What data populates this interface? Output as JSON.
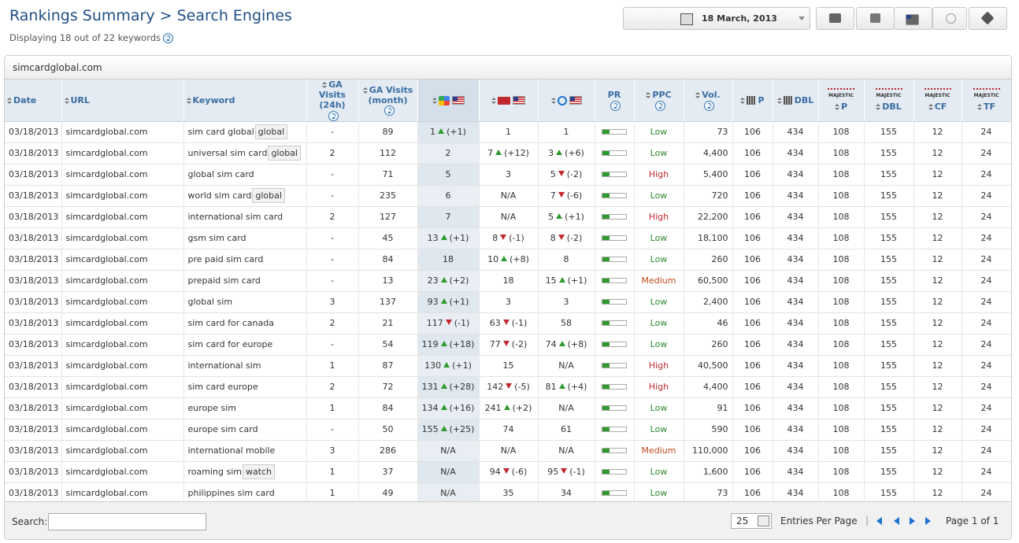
{
  "header": {
    "title": "Rankings Summary > Search Engines",
    "subtitle": "Displaying 18 out of 22 keywords",
    "date": "18 March, 2013"
  },
  "panel": {
    "site": "simcardglobal.com"
  },
  "table": {
    "columns": [
      {
        "label": "Date"
      },
      {
        "label": "URL"
      },
      {
        "label": "Keyword"
      },
      {
        "label": "GA Visits (24h)",
        "help": true
      },
      {
        "label": "GA Visits (month)",
        "help": true
      },
      {
        "engine": "google"
      },
      {
        "engine": "yahoo"
      },
      {
        "engine": "bing"
      },
      {
        "label": "PR",
        "help": true
      },
      {
        "label": "PPC",
        "help": true
      },
      {
        "label": "Vol.",
        "help": true
      },
      {
        "label": "P",
        "icon": true
      },
      {
        "label": "DBL",
        "icon": true
      },
      {
        "label": "P",
        "brand": "MAJESTIC"
      },
      {
        "label": "DBL",
        "brand": "MAJESTIC"
      },
      {
        "label": "CF",
        "brand": "MAJESTIC"
      },
      {
        "label": "TF",
        "brand": "MAJESTIC"
      }
    ],
    "rows": [
      {
        "date": "03/18/2013",
        "url": "simcardglobal.com",
        "keyword": "sim card global",
        "tag": "global",
        "ga24": "-",
        "ga_month": "89",
        "google": {
          "rank": "1",
          "trend": "up",
          "change": "(+1)"
        },
        "yahoo": "1",
        "bing": "1",
        "ppc": "Low",
        "vol": "73",
        "p": "106",
        "dbl": "434",
        "mp": "108",
        "mdbl": "155",
        "cf": "12",
        "tf": "24"
      },
      {
        "date": "03/18/2013",
        "url": "simcardglobal.com",
        "keyword": "universal sim card",
        "tag": "global",
        "ga24": "2",
        "ga_month": "112",
        "google": "2",
        "yahoo": {
          "rank": "7",
          "trend": "up",
          "change": "(+12)"
        },
        "bing": {
          "rank": "3",
          "trend": "up",
          "change": "(+6)"
        },
        "ppc": "Low",
        "vol": "4,400",
        "p": "106",
        "dbl": "434",
        "mp": "108",
        "mdbl": "155",
        "cf": "12",
        "tf": "24"
      },
      {
        "date": "03/18/2013",
        "url": "simcardglobal.com",
        "keyword": "global sim card",
        "ga24": "-",
        "ga_month": "71",
        "google": "5",
        "yahoo": "3",
        "bing": {
          "rank": "5",
          "trend": "down",
          "change": "(-2)"
        },
        "ppc": "High",
        "vol": "5,400",
        "p": "106",
        "dbl": "434",
        "mp": "108",
        "mdbl": "155",
        "cf": "12",
        "tf": "24"
      },
      {
        "date": "03/18/2013",
        "url": "simcardglobal.com",
        "keyword": "world sim card",
        "tag": "global",
        "ga24": "-",
        "ga_month": "235",
        "google": "6",
        "yahoo": "N/A",
        "bing": {
          "rank": "7",
          "trend": "down",
          "change": "(-6)"
        },
        "ppc": "Low",
        "vol": "720",
        "p": "106",
        "dbl": "434",
        "mp": "108",
        "mdbl": "155",
        "cf": "12",
        "tf": "24"
      },
      {
        "date": "03/18/2013",
        "url": "simcardglobal.com",
        "keyword": "international sim card",
        "ga24": "2",
        "ga_month": "127",
        "google": "7",
        "yahoo": "N/A",
        "bing": {
          "rank": "5",
          "trend": "up",
          "change": "(+1)"
        },
        "ppc": "High",
        "vol": "22,200",
        "p": "106",
        "dbl": "434",
        "mp": "108",
        "mdbl": "155",
        "cf": "12",
        "tf": "24"
      },
      {
        "date": "03/18/2013",
        "url": "simcardglobal.com",
        "keyword": "gsm sim card",
        "ga24": "-",
        "ga_month": "45",
        "google": {
          "rank": "13",
          "trend": "up",
          "change": "(+1)"
        },
        "yahoo": {
          "rank": "8",
          "trend": "down",
          "change": "(-1)"
        },
        "bing": {
          "rank": "8",
          "trend": "down",
          "change": "(-2)"
        },
        "ppc": "Low",
        "vol": "18,100",
        "p": "106",
        "dbl": "434",
        "mp": "108",
        "mdbl": "155",
        "cf": "12",
        "tf": "24"
      },
      {
        "date": "03/18/2013",
        "url": "simcardglobal.com",
        "keyword": "pre paid sim card",
        "ga24": "-",
        "ga_month": "84",
        "google": "18",
        "yahoo": {
          "rank": "10",
          "trend": "up",
          "change": "(+8)"
        },
        "bing": "8",
        "ppc": "Low",
        "vol": "260",
        "p": "106",
        "dbl": "434",
        "mp": "108",
        "mdbl": "155",
        "cf": "12",
        "tf": "24"
      },
      {
        "date": "03/18/2013",
        "url": "simcardglobal.com",
        "keyword": "prepaid sim card",
        "ga24": "-",
        "ga_month": "13",
        "google": {
          "rank": "23",
          "trend": "up",
          "change": "(+2)"
        },
        "yahoo": "18",
        "bing": {
          "rank": "15",
          "trend": "up",
          "change": "(+1)"
        },
        "ppc": "Medium",
        "vol": "60,500",
        "p": "106",
        "dbl": "434",
        "mp": "108",
        "mdbl": "155",
        "cf": "12",
        "tf": "24"
      },
      {
        "date": "03/18/2013",
        "url": "simcardglobal.com",
        "keyword": "global sim",
        "ga24": "3",
        "ga_month": "137",
        "google": {
          "rank": "93",
          "trend": "up",
          "change": "(+1)"
        },
        "yahoo": "3",
        "bing": "3",
        "ppc": "Low",
        "vol": "2,400",
        "p": "106",
        "dbl": "434",
        "mp": "108",
        "mdbl": "155",
        "cf": "12",
        "tf": "24"
      },
      {
        "date": "03/18/2013",
        "url": "simcardglobal.com",
        "keyword": "sim card for canada",
        "ga24": "2",
        "ga_month": "21",
        "google": {
          "rank": "117",
          "trend": "down",
          "change": "(-1)"
        },
        "yahoo": {
          "rank": "63",
          "trend": "down",
          "change": "(-1)"
        },
        "bing": "58",
        "ppc": "Low",
        "vol": "46",
        "p": "106",
        "dbl": "434",
        "mp": "108",
        "mdbl": "155",
        "cf": "12",
        "tf": "24"
      },
      {
        "date": "03/18/2013",
        "url": "simcardglobal.com",
        "keyword": "sim card for europe",
        "ga24": "-",
        "ga_month": "54",
        "google": {
          "rank": "119",
          "trend": "up",
          "change": "(+18)"
        },
        "yahoo": {
          "rank": "77",
          "trend": "down",
          "change": "(-2)"
        },
        "bing": {
          "rank": "74",
          "trend": "up",
          "change": "(+8)"
        },
        "ppc": "Low",
        "vol": "260",
        "p": "106",
        "dbl": "434",
        "mp": "108",
        "mdbl": "155",
        "cf": "12",
        "tf": "24"
      },
      {
        "date": "03/18/2013",
        "url": "simcardglobal.com",
        "keyword": "international sim",
        "ga24": "1",
        "ga_month": "87",
        "google": {
          "rank": "130",
          "trend": "up",
          "change": "(+1)"
        },
        "yahoo": "15",
        "bing": "N/A",
        "ppc": "High",
        "vol": "40,500",
        "p": "106",
        "dbl": "434",
        "mp": "108",
        "mdbl": "155",
        "cf": "12",
        "tf": "24"
      },
      {
        "date": "03/18/2013",
        "url": "simcardglobal.com",
        "keyword": "sim card europe",
        "ga24": "2",
        "ga_month": "72",
        "google": {
          "rank": "131",
          "trend": "up",
          "change": "(+28)"
        },
        "yahoo": {
          "rank": "142",
          "trend": "down",
          "change": "(-5)"
        },
        "bing": {
          "rank": "81",
          "trend": "up",
          "change": "(+4)"
        },
        "ppc": "High",
        "vol": "4,400",
        "p": "106",
        "dbl": "434",
        "mp": "108",
        "mdbl": "155",
        "cf": "12",
        "tf": "24"
      },
      {
        "date": "03/18/2013",
        "url": "simcardglobal.com",
        "keyword": "europe sim",
        "ga24": "1",
        "ga_month": "84",
        "google": {
          "rank": "134",
          "trend": "up",
          "change": "(+16)"
        },
        "yahoo": {
          "rank": "241",
          "trend": "up",
          "change": "(+2)"
        },
        "bing": "N/A",
        "ppc": "Low",
        "vol": "91",
        "p": "106",
        "dbl": "434",
        "mp": "108",
        "mdbl": "155",
        "cf": "12",
        "tf": "24"
      },
      {
        "date": "03/18/2013",
        "url": "simcardglobal.com",
        "keyword": "europe sim card",
        "ga24": "-",
        "ga_month": "50",
        "google": {
          "rank": "155",
          "trend": "up",
          "change": "(+25)"
        },
        "yahoo": "74",
        "bing": "61",
        "ppc": "Low",
        "vol": "590",
        "p": "106",
        "dbl": "434",
        "mp": "108",
        "mdbl": "155",
        "cf": "12",
        "tf": "24"
      },
      {
        "date": "03/18/2013",
        "url": "simcardglobal.com",
        "keyword": "international mobile",
        "ga24": "3",
        "ga_month": "286",
        "google": "N/A",
        "yahoo": "N/A",
        "bing": "N/A",
        "ppc": "Medium",
        "vol": "110,000",
        "p": "106",
        "dbl": "434",
        "mp": "108",
        "mdbl": "155",
        "cf": "12",
        "tf": "24"
      },
      {
        "date": "03/18/2013",
        "url": "simcardglobal.com",
        "keyword": "roaming sim",
        "tag": "watch",
        "ga24": "1",
        "ga_month": "37",
        "google": "N/A",
        "yahoo": {
          "rank": "94",
          "trend": "down",
          "change": "(-6)"
        },
        "bing": {
          "rank": "95",
          "trend": "down",
          "change": "(-1)"
        },
        "ppc": "Low",
        "vol": "1,600",
        "p": "106",
        "dbl": "434",
        "mp": "108",
        "mdbl": "155",
        "cf": "12",
        "tf": "24"
      },
      {
        "date": "03/18/2013",
        "url": "simcardglobal.com",
        "keyword": "philippines sim card",
        "ga24": "1",
        "ga_month": "49",
        "google": "N/A",
        "yahoo": "35",
        "bing": "34",
        "ppc": "Low",
        "vol": "73",
        "p": "106",
        "dbl": "434",
        "mp": "108",
        "mdbl": "155",
        "cf": "12",
        "tf": "24"
      }
    ]
  },
  "footer": {
    "search_label": "Search:",
    "per_page": "25",
    "per_page_label": "Entries Per Page",
    "page_info": "Page 1 of 1"
  }
}
